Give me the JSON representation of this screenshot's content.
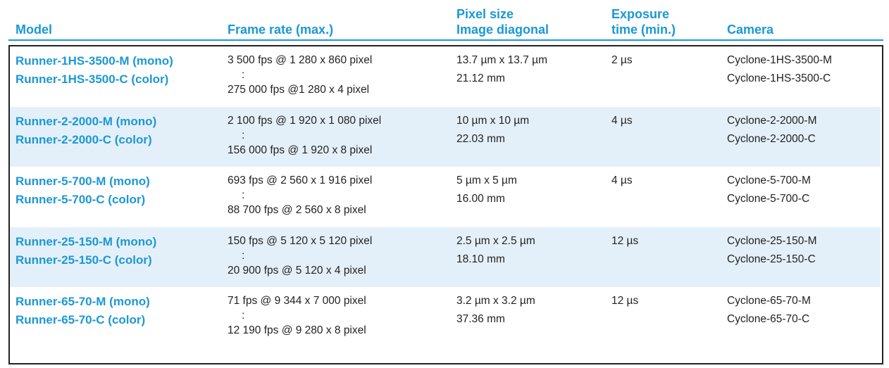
{
  "table": {
    "header": [
      [
        "Model"
      ],
      [
        "Frame rate (max.)"
      ],
      [
        "Pixel size",
        "Image diagonal"
      ],
      [
        "Exposure",
        "time (min.)"
      ],
      [
        "Camera"
      ]
    ],
    "rows": [
      {
        "model": [
          "Runner-1HS-3500-M (mono)",
          "Runner-1HS-3500-C (color)"
        ],
        "frame_rate": [
          "3 500 fps @ 1 280 x 860 pixel",
          ":",
          "275 000 fps @1 280 x 4 pixel"
        ],
        "pixel": [
          "13.7 µm x 13.7 µm",
          "21.12 mm"
        ],
        "exposure": "2 µs",
        "camera": [
          "Cyclone-1HS-3500-M",
          "Cyclone-1HS-3500-C"
        ]
      },
      {
        "model": [
          "Runner-2-2000-M (mono)",
          "Runner-2-2000-C (color)"
        ],
        "frame_rate": [
          "2 100 fps @ 1 920 x 1 080 pixel",
          ":",
          "156 000 fps @ 1 920 x 8 pixel"
        ],
        "pixel": [
          "10 µm x 10 µm",
          "22.03 mm"
        ],
        "exposure": "4 µs",
        "camera": [
          "Cyclone-2-2000-M",
          "Cyclone-2-2000-C"
        ]
      },
      {
        "model": [
          "Runner-5-700-M (mono)",
          "Runner-5-700-C (color)"
        ],
        "frame_rate": [
          "693 fps @ 2 560 x 1 916 pixel",
          ":",
          "88 700 fps @ 2 560 x 8 pixel"
        ],
        "pixel": [
          "5 µm x 5 µm",
          "16.00 mm"
        ],
        "exposure": "4 µs",
        "camera": [
          "Cyclone-5-700-M",
          "Cyclone-5-700-C"
        ]
      },
      {
        "model": [
          "Runner-25-150-M (mono)",
          "Runner-25-150-C (color)"
        ],
        "frame_rate": [
          "150 fps @ 5 120 x 5 120 pixel",
          ":",
          "20 900 fps @ 5 120 x 4 pixel"
        ],
        "pixel": [
          "2.5 µm x 2.5 µm",
          "18.10 mm"
        ],
        "exposure": "12 µs",
        "camera": [
          "Cyclone-25-150-M",
          "Cyclone-25-150-C"
        ]
      },
      {
        "model": [
          "Runner-65-70-M (mono)",
          "Runner-65-70-C (color)"
        ],
        "frame_rate": [
          "71 fps @ 9 344 x 7 000 pixel",
          ":",
          "12 190 fps @ 9 280 x 8 pixel"
        ],
        "pixel": [
          "3.2 µm x 3.2 µm",
          "37.36 mm"
        ],
        "exposure": "12 µs",
        "camera": [
          "Cyclone-65-70-M",
          "Cyclone-65-70-C"
        ]
      }
    ]
  }
}
